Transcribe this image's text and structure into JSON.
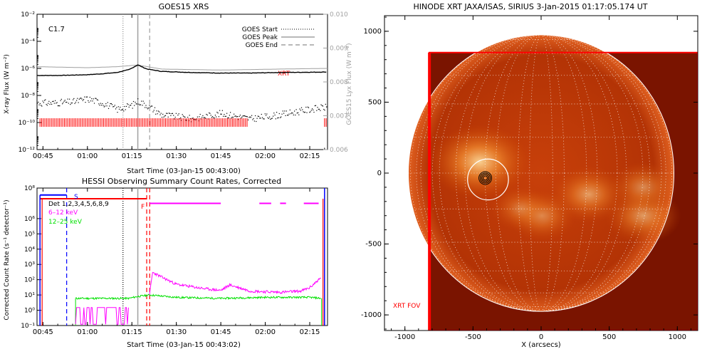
{
  "colors": {
    "goes_long": "#000000",
    "goes_short": "#000000",
    "lyman_alpha": "#a0a0a0",
    "xrt_marks": "#ff0000",
    "peak_line": "#a0a0a0",
    "hessi_6_12": "#ff00ff",
    "hessi_12_25": "#00e000",
    "hessi_attenuator": "#0000ff",
    "hessi_flags": "#ff0000",
    "sun_disk_bright": "#d24a00",
    "sun_disk_dark": "#7a1400"
  },
  "chart_data": [
    {
      "id": "goes",
      "type": "line",
      "title": "GOES15 XRS",
      "xlabel": "Start Time (03-Jan-15 00:43:00)",
      "ylabel": "X-ray Flux (W m⁻²)",
      "ylabel_right": "GOES15 Lyx Flux (W m⁻²)",
      "y_log": true,
      "ylim": [
        1e-12,
        0.01
      ],
      "y2lim": [
        0.006,
        0.01
      ],
      "xlim": [
        "00:43",
        "02:21"
      ],
      "x_ticks": [
        "00:45",
        "01:00",
        "01:15",
        "01:30",
        "01:45",
        "02:00",
        "02:15"
      ],
      "y_ticks": [
        "10⁻¹²",
        "10⁻¹⁰",
        "10⁻⁸",
        "10⁻⁶",
        "10⁻⁴",
        "10⁻²"
      ],
      "y2_ticks": [
        "0.006",
        "0.007",
        "0.008",
        "0.009",
        "0.010"
      ],
      "class_label": "C1.7",
      "markers_label": "XRT",
      "legend": [
        {
          "label": "GOES Start",
          "style": "dotted",
          "time": "01:12"
        },
        {
          "label": "GOES Peak",
          "style": "solid",
          "time": "01:17"
        },
        {
          "label": "GOES End",
          "style": "dashed",
          "time": "01:21"
        }
      ],
      "series": [
        {
          "name": "long",
          "x": [
            "00:43",
            "00:50",
            "01:00",
            "01:05",
            "01:10",
            "01:14",
            "01:17",
            "01:20",
            "01:25",
            "01:35",
            "01:45",
            "01:55",
            "02:05",
            "02:15",
            "02:21"
          ],
          "values": [
            3e-07,
            3e-07,
            3.4e-07,
            4e-07,
            5e-07,
            8e-07,
            1.8e-06,
            9e-07,
            6e-07,
            5e-07,
            4.5e-07,
            4.5e-07,
            5e-07,
            5.2e-07,
            5.4e-07
          ]
        },
        {
          "name": "short",
          "x": [
            "00:43",
            "00:48",
            "00:55",
            "01:00",
            "01:05",
            "01:10",
            "01:15",
            "01:17",
            "01:20",
            "01:25",
            "01:35",
            "01:45",
            "01:55",
            "02:05",
            "02:15",
            "02:21"
          ],
          "values": [
            3e-09,
            3e-09,
            3.5e-09,
            6e-09,
            3e-09,
            1e-09,
            2e-09,
            4e-09,
            2e-09,
            4e-10,
            2e-10,
            5e-10,
            2e-10,
            4e-10,
            1e-09,
            1.5e-09
          ]
        },
        {
          "name": "lyman_alpha",
          "x": [
            "00:43",
            "01:00",
            "01:10",
            "01:17",
            "01:25",
            "01:45",
            "02:05",
            "02:21"
          ],
          "values": [
            0.00845,
            0.00842,
            0.00845,
            0.0085,
            0.00838,
            0.00835,
            0.00838,
            0.0084
          ]
        }
      ],
      "xrt_observation_intervals": [
        [
          "00:44",
          "01:54"
        ],
        [
          "02:20",
          "02:21"
        ]
      ]
    },
    {
      "id": "hessi",
      "type": "line",
      "title": "HESSI Observing Summary Count Rates, Corrected",
      "xlabel": "Start Time (03-Jan-15 00:43:02)",
      "ylabel": "Corrected Count Rate (s⁻¹ detector⁻¹)",
      "y_log": true,
      "ylim": [
        0.1,
        100000000
      ],
      "xlim": [
        "00:43",
        "02:21"
      ],
      "x_ticks": [
        "00:45",
        "01:00",
        "01:15",
        "01:30",
        "01:45",
        "02:00",
        "02:15"
      ],
      "y_ticks": [
        "10⁻¹",
        "10⁰",
        "10¹",
        "10²",
        "10³",
        "10⁴",
        "10⁵",
        "10⁶",
        "10⁸"
      ],
      "legend": [
        {
          "label": "Det 1,2,3,4,5,6,8,9",
          "color": "#000000"
        },
        {
          "label": "6–12 keV",
          "color": "#ff00ff"
        },
        {
          "label": "12–25 keV",
          "color": "#00e000"
        }
      ],
      "flag_labels": {
        "s": "S",
        "f": "F"
      },
      "series": [
        {
          "name": "6–12 keV",
          "x": [
            "01:21",
            "01:22",
            "01:25",
            "01:30",
            "01:35",
            "01:40",
            "01:45",
            "01:48",
            "01:55",
            "02:05",
            "02:12",
            "02:15",
            "02:18",
            "02:19"
          ],
          "values": [
            12,
            300,
            150,
            50,
            35,
            25,
            20,
            45,
            18,
            15,
            18,
            30,
            100,
            130
          ]
        },
        {
          "name": "12–25 keV",
          "x": [
            "00:56",
            "01:05",
            "01:14",
            "01:17",
            "01:21",
            "01:30",
            "01:45",
            "02:00",
            "02:15",
            "02:19"
          ],
          "values": [
            6,
            6,
            6,
            8,
            10,
            7,
            6,
            7,
            7,
            6
          ]
        }
      ],
      "event_lines": [
        {
          "time": "00:53",
          "style": "dashed",
          "color": "#0000ff"
        },
        {
          "time": "01:12",
          "style": "dotted",
          "color": "#000000"
        },
        {
          "time": "01:17",
          "style": "solid",
          "color": "#a0a0a0"
        },
        {
          "time": "01:20",
          "style": "dashed",
          "color": "#ff0000"
        },
        {
          "time": "01:21",
          "style": "dashed",
          "color": "#ff0000"
        }
      ],
      "flag_segments": [
        {
          "name": "attenuator",
          "color": "#0000ff",
          "from": "00:44",
          "to": "00:53",
          "level": 35000000.0
        },
        {
          "name": "saa",
          "color": "#ff0000",
          "from": "00:44",
          "to": "01:20",
          "level": 20000000.0
        },
        {
          "name": "flare",
          "color": "#ff00ff",
          "from": "01:21",
          "to": "01:45",
          "level": 10000000.0
        },
        {
          "name": "flare",
          "color": "#ff00ff",
          "from": "01:58",
          "to": "02:02",
          "level": 10000000.0
        },
        {
          "name": "flare",
          "color": "#ff00ff",
          "from": "02:05",
          "to": "02:07",
          "level": 10000000.0
        },
        {
          "name": "flare",
          "color": "#ff00ff",
          "from": "02:13",
          "to": "02:18",
          "level": 10000000.0
        }
      ]
    },
    {
      "id": "xrt",
      "type": "heatmap",
      "title": "HINODE XRT JAXA/ISAS, SIRIUS   3-Jan-2015 01:17:05.174 UT",
      "xlabel": "X (arcsecs)",
      "ylabel": "",
      "xlim": [
        -1150,
        1150
      ],
      "ylim": [
        -1110,
        1110
      ],
      "x_ticks": [
        "-1000",
        "-500",
        "0",
        "500",
        "1000"
      ],
      "y_ticks": [
        "-1000",
        "-500",
        "0",
        "500",
        "1000"
      ],
      "fov_label": "XRT FOV",
      "solar_radius_arcsec": 975,
      "fov_box": {
        "x0": -820,
        "x1": 1150,
        "y0": -1110,
        "y1": 850
      },
      "flare_location": {
        "x": -390,
        "y": -45
      },
      "target_circle_radius": 150,
      "active_regions": [
        {
          "x": -450,
          "y": 80,
          "intensity": 0.9
        },
        {
          "x": 350,
          "y": -150,
          "intensity": 0.6
        },
        {
          "x": 5,
          "y": -300,
          "intensity": 0.5
        },
        {
          "x": 750,
          "y": -300,
          "intensity": 0.6
        },
        {
          "x": 750,
          "y": -100,
          "intensity": 0.5
        },
        {
          "x": -150,
          "y": -250,
          "intensity": 0.4
        }
      ]
    }
  ]
}
